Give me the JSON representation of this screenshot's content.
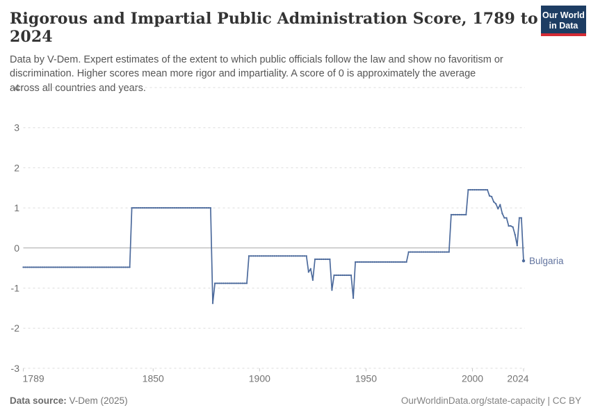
{
  "header": {
    "title": "Rigorous and Impartial Public Administration Score, 1789 to 2024",
    "subtitle_lines": [
      "Data by V-Dem. Expert estimates of the extent to which public officials follow the law and show no favoritism or",
      "discrimination. Higher scores mean more rigor and impartiality. A score of 0 is approximately the average",
      "across all countries and years."
    ],
    "logo": {
      "line1": "Our World",
      "line2": "in Data",
      "bg_color": "#1d3d63",
      "accent_color": "#d42b34"
    }
  },
  "chart_data": {
    "type": "line",
    "title": "Rigorous and Impartial Public Administration Score, 1789 to 2024",
    "xlabel": "",
    "ylabel": "",
    "x_range": [
      1789,
      2024
    ],
    "ylim": [
      -3,
      4
    ],
    "grid": true,
    "y_ticks": [
      4,
      3,
      2,
      1,
      0,
      -1,
      -2,
      -3
    ],
    "x_ticks": [
      1789,
      1850,
      1900,
      1950,
      2000,
      2024
    ],
    "legend_position": "end-of-line-label",
    "line_color": "#4c6a9c",
    "entity_label_color": "#62749f",
    "series": [
      {
        "name": "Bulgaria",
        "breakpoints": [
          [
            1789,
            -0.48
          ],
          [
            1839,
            -0.48
          ],
          [
            1840,
            1.0
          ],
          [
            1877,
            1.0
          ],
          [
            1878,
            -1.38
          ],
          [
            1879,
            -0.88
          ],
          [
            1894,
            -0.88
          ],
          [
            1895,
            -0.2
          ],
          [
            1922,
            -0.2
          ],
          [
            1923,
            -0.6
          ],
          [
            1924,
            -0.52
          ],
          [
            1925,
            -0.8
          ],
          [
            1926,
            -0.28
          ],
          [
            1933,
            -0.28
          ],
          [
            1934,
            -1.05
          ],
          [
            1935,
            -0.68
          ],
          [
            1943,
            -0.68
          ],
          [
            1944,
            -1.25
          ],
          [
            1945,
            -0.35
          ],
          [
            1969,
            -0.35
          ],
          [
            1970,
            -0.1
          ],
          [
            1989,
            -0.1
          ],
          [
            1990,
            0.83
          ],
          [
            1997,
            0.83
          ],
          [
            1998,
            1.45
          ],
          [
            2007,
            1.45
          ],
          [
            2008,
            1.3
          ],
          [
            2009,
            1.28
          ],
          [
            2010,
            1.15
          ],
          [
            2011,
            1.1
          ],
          [
            2012,
            0.98
          ],
          [
            2013,
            1.08
          ],
          [
            2014,
            0.86
          ],
          [
            2015,
            0.75
          ],
          [
            2016,
            0.75
          ],
          [
            2017,
            0.55
          ],
          [
            2018,
            0.55
          ],
          [
            2019,
            0.52
          ],
          [
            2020,
            0.33
          ],
          [
            2021,
            0.06
          ],
          [
            2022,
            0.75
          ],
          [
            2023,
            0.75
          ],
          [
            2024,
            -0.32
          ]
        ]
      }
    ]
  },
  "footer": {
    "source_label": "Data source:",
    "source_value": " V-Dem (2025)",
    "right_text": "OurWorldinData.org/state-capacity | CC BY"
  }
}
